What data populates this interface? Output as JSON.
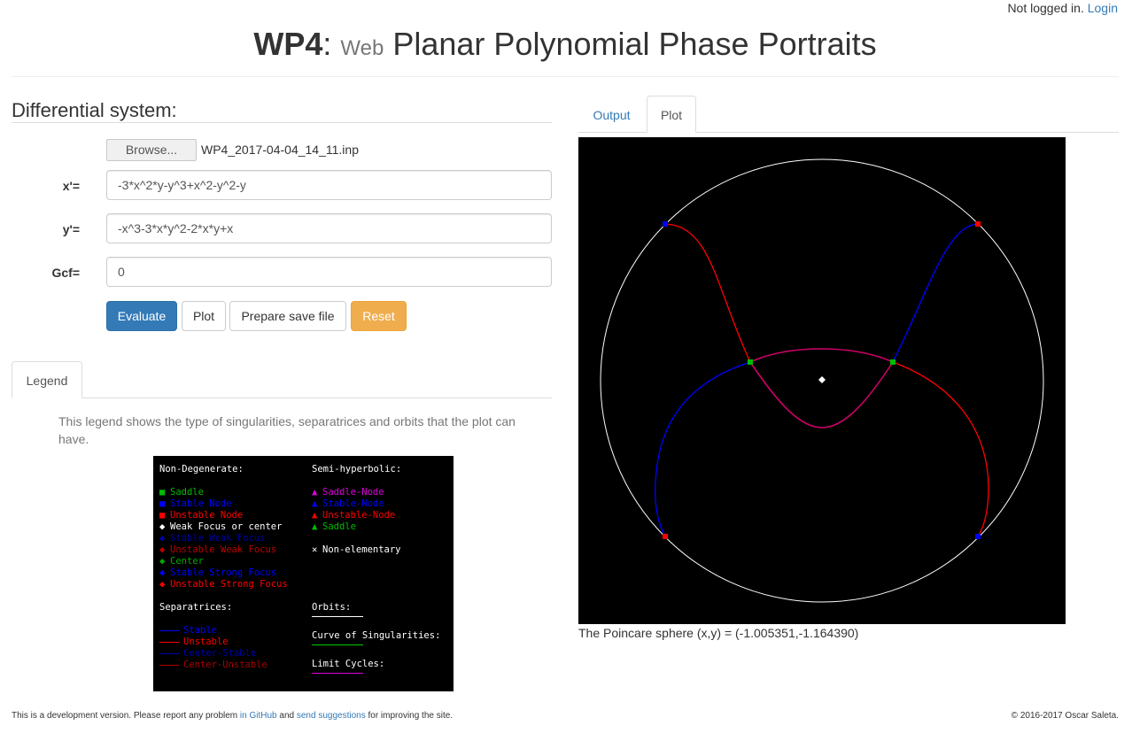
{
  "header": {
    "login_status": "Not logged in.",
    "login_link": "Login",
    "title_main": "WP4",
    "title_sep": ":",
    "title_small": "Web",
    "title_rest": "Planar Polynomial Phase Portraits"
  },
  "form": {
    "section_title": "Differential system:",
    "browse_label": "Browse...",
    "file_name": "WP4_2017-04-04_14_11.inp",
    "fields": [
      {
        "label": "x'=",
        "value": "-3*x^2*y-y^3+x^2-y^2-y"
      },
      {
        "label": "y'=",
        "value": "-x^3-3*x*y^2-2*x*y+x"
      },
      {
        "label": "Gcf=",
        "value": "0"
      }
    ],
    "buttons": {
      "evaluate": "Evaluate",
      "plot": "Plot",
      "save": "Prepare save file",
      "reset": "Reset"
    }
  },
  "legend": {
    "tab": "Legend",
    "description": "This legend shows the type of singularities, separatrices and orbits that the plot can have.",
    "nondeg_title": "Non-Degenerate:",
    "nondeg": [
      {
        "marker": "■",
        "label": "Saddle",
        "color": "#00bb00"
      },
      {
        "marker": "■",
        "label": "Stable Node",
        "color": "#0000ff"
      },
      {
        "marker": "■",
        "label": "Unstable Node",
        "color": "#ff0000"
      },
      {
        "marker": "◆",
        "label": "Weak Focus or center",
        "color": "#ffffff"
      },
      {
        "marker": "◆",
        "label": "Stable Weak Focus",
        "color": "#0000aa"
      },
      {
        "marker": "◆",
        "label": "Unstable Weak Focus",
        "color": "#bb0000"
      },
      {
        "marker": "◆",
        "label": "Center",
        "color": "#00aa00"
      },
      {
        "marker": "◆",
        "label": "Stable Strong Focus",
        "color": "#0000ff"
      },
      {
        "marker": "◆",
        "label": "Unstable Strong Focus",
        "color": "#ff0000"
      }
    ],
    "semi_title": "Semi-hyperbolic:",
    "semi": [
      {
        "marker": "▲",
        "label": "Saddle-Node",
        "color": "#dd00dd"
      },
      {
        "marker": "▲",
        "label": "Stable-Node",
        "color": "#0000ff"
      },
      {
        "marker": "▲",
        "label": "Unstable-Node",
        "color": "#ff0000"
      },
      {
        "marker": "▲",
        "label": "Saddle",
        "color": "#00bb00"
      }
    ],
    "nonelem": {
      "marker": "✕",
      "label": "Non-elementary",
      "color": "#ffffff"
    },
    "sep_title": "Separatrices:",
    "separatrices": [
      {
        "label": "Stable",
        "color": "#0000ff"
      },
      {
        "label": "Unstable",
        "color": "#ff0000"
      },
      {
        "label": "Center-Stable",
        "color": "#0000aa"
      },
      {
        "label": "Center-Unstable",
        "color": "#aa0000"
      }
    ],
    "orbits_title": "Orbits:",
    "orbits_color": "#ffffff",
    "curve_title": "Curve of Singularities:",
    "curve_color": "#00cc00",
    "limit_title": "Limit Cycles:",
    "limit_color": "#dd00dd"
  },
  "plot": {
    "tabs": [
      "Output",
      "Plot"
    ],
    "active_tab": "Plot",
    "coords": "The Poincare sphere (x,y) = (-1.005351,-1.164390)",
    "colors": {
      "background": "#000000",
      "circle": "#ffffff",
      "stable": "#0000ff",
      "unstable": "#ff0000",
      "mixed": "#cc0066",
      "saddle": "#00bb00",
      "center": "#ffffff"
    }
  },
  "footer": {
    "text1": "This is a development version. Please report any problem",
    "link1": "in GitHub",
    "text2": "and",
    "link2": "send suggestions",
    "text3": "for improving the site.",
    "copyright": "© 2016-2017 Oscar Saleta."
  }
}
